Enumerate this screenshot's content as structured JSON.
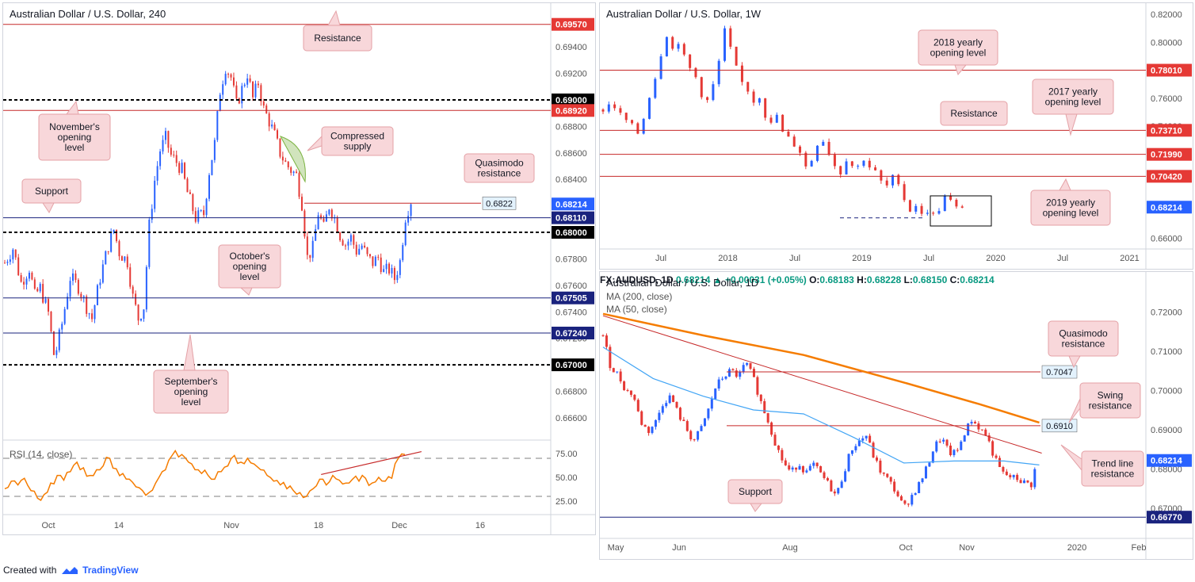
{
  "footer": {
    "created_with": "Created with",
    "brand": "TradingView",
    "logo_icon": "tradingview-logo-icon"
  },
  "colors": {
    "up": "#2962ff",
    "down": "#e53935",
    "level_red": "#c62828",
    "level_blue": "#1a237e",
    "rsi": "#f57c00",
    "ma200": "#f57c00",
    "ma50": "#42a5f5",
    "callout_bg": "#f8d7da",
    "callout_border": "#e4a1a6"
  },
  "chart_data": [
    {
      "id": "h4",
      "type": "candlestick",
      "title": "Australian Dollar / U.S. Dollar, 240",
      "ylim": [
        0.6645,
        0.6967
      ],
      "y_ticks": [
        "0.69400",
        "0.69200",
        "0.68800",
        "0.68600",
        "0.68400",
        "0.67800",
        "0.67600",
        "0.67400",
        "0.67200",
        "0.66800",
        "0.66600"
      ],
      "x_ticks": [
        "Oct",
        "14",
        "Nov",
        "18",
        "Dec",
        "16"
      ],
      "levels": [
        {
          "value": 0.6957,
          "label": "0.69570",
          "style": "red"
        },
        {
          "value": 0.69,
          "label": "0.69000",
          "style": "dash"
        },
        {
          "value": 0.6892,
          "label": "0.68920",
          "style": "red"
        },
        {
          "value": 0.68214,
          "label": "0.68214",
          "style": "blue-price"
        },
        {
          "value": 0.6811,
          "label": "0.68110",
          "style": "blue"
        },
        {
          "value": 0.68,
          "label": "0.68000",
          "style": "dash"
        },
        {
          "value": 0.67505,
          "label": "0.67505",
          "style": "blue"
        },
        {
          "value": 0.6724,
          "label": "0.67240",
          "style": "blue"
        },
        {
          "value": 0.67,
          "label": "0.67000",
          "style": "dash"
        }
      ],
      "quasimodo_tag": "0.6822",
      "path": [
        [
          0,
          0.6777
        ],
        [
          3,
          0.6788
        ],
        [
          6,
          0.6762
        ],
        [
          9,
          0.6773
        ],
        [
          11,
          0.6752
        ],
        [
          13,
          0.6758
        ],
        [
          16,
          0.6739
        ],
        [
          18,
          0.6708
        ],
        [
          19,
          0.6712
        ],
        [
          21,
          0.6731
        ],
        [
          24,
          0.6766
        ],
        [
          27,
          0.6759
        ],
        [
          30,
          0.6744
        ],
        [
          32,
          0.6735
        ],
        [
          35,
          0.6766
        ],
        [
          38,
          0.679
        ],
        [
          40,
          0.6802
        ],
        [
          42,
          0.6785
        ],
        [
          45,
          0.6778
        ],
        [
          47,
          0.6751
        ],
        [
          49,
          0.6735
        ],
        [
          51,
          0.6744
        ],
        [
          53,
          0.6805
        ],
        [
          55,
          0.6839
        ],
        [
          57,
          0.6862
        ],
        [
          59,
          0.6871
        ],
        [
          61,
          0.6858
        ],
        [
          63,
          0.6853
        ],
        [
          65,
          0.6847
        ],
        [
          67,
          0.683
        ],
        [
          70,
          0.6811
        ],
        [
          73,
          0.6814
        ],
        [
          75,
          0.6846
        ],
        [
          77,
          0.6867
        ],
        [
          79,
          0.6907
        ],
        [
          81,
          0.6925
        ],
        [
          83,
          0.6917
        ],
        [
          85,
          0.6896
        ],
        [
          87,
          0.6908
        ],
        [
          89,
          0.692
        ],
        [
          91,
          0.6901
        ],
        [
          93,
          0.6913
        ],
        [
          95,
          0.6893
        ],
        [
          97,
          0.6884
        ],
        [
          99,
          0.6873
        ],
        [
          101,
          0.686
        ],
        [
          103,
          0.6852
        ],
        [
          105,
          0.6847
        ],
        [
          107,
          0.6843
        ],
        [
          109,
          0.6822
        ],
        [
          111,
          0.6781
        ],
        [
          113,
          0.6788
        ],
        [
          115,
          0.6815
        ],
        [
          117,
          0.6803
        ],
        [
          119,
          0.682
        ],
        [
          121,
          0.6811
        ],
        [
          123,
          0.6798
        ],
        [
          125,
          0.6791
        ],
        [
          127,
          0.6796
        ],
        [
          129,
          0.6786
        ],
        [
          131,
          0.679
        ],
        [
          133,
          0.6781
        ],
        [
          135,
          0.6777
        ],
        [
          137,
          0.6781
        ],
        [
          139,
          0.677
        ],
        [
          141,
          0.6772
        ],
        [
          143,
          0.6765
        ],
        [
          145,
          0.6778
        ],
        [
          147,
          0.6812
        ],
        [
          149,
          0.6824
        ]
      ],
      "path_x_range": [
        0,
        200
      ],
      "rsi": {
        "label": "RSI (14, close)",
        "ylim": [
          15,
          85
        ],
        "y_ticks": [
          "75.00",
          "50.00",
          "25.00"
        ],
        "bands": [
          70,
          30
        ],
        "values": [
          38,
          46,
          42,
          49,
          36,
          28,
          32,
          44,
          52,
          47,
          56,
          66,
          60,
          52,
          58,
          62,
          70,
          59,
          54,
          48,
          40,
          36,
          34,
          44,
          56,
          68,
          78,
          74,
          66,
          58,
          54,
          52,
          48,
          56,
          62,
          73,
          66,
          70,
          64,
          58,
          52,
          46,
          42,
          38,
          36,
          34,
          30,
          38,
          48,
          42,
          52,
          47,
          44,
          48,
          46,
          49,
          44,
          50,
          46,
          49,
          70,
          74
        ],
        "trend_line": [
          [
            118,
            53
          ],
          [
            153,
            77
          ]
        ]
      },
      "callouts": [
        {
          "text": "Resistance"
        },
        {
          "text": "November's opening level"
        },
        {
          "text": "Compressed supply"
        },
        {
          "text": "Quasimodo resistance"
        },
        {
          "text": "Support"
        },
        {
          "text": "October's opening level"
        },
        {
          "text": "September's opening level"
        }
      ]
    },
    {
      "id": "weekly",
      "type": "candlestick",
      "title": "Australian Dollar / U.S. Dollar, 1W",
      "ylim": [
        0.6545,
        0.8235
      ],
      "y_ticks": [
        "0.82000",
        "0.80000",
        "0.76000",
        "0.74000",
        "0.66000"
      ],
      "x_ticks": [
        "Jul",
        "2018",
        "Jul",
        "2019",
        "Jul",
        "2020",
        "Jul",
        "2021"
      ],
      "levels": [
        {
          "value": 0.7801,
          "label": "0.78010",
          "style": "red"
        },
        {
          "value": 0.7371,
          "label": "0.73710",
          "style": "red"
        },
        {
          "value": 0.7199,
          "label": "0.71990",
          "style": "red"
        },
        {
          "value": 0.7042,
          "label": "0.70420",
          "style": "red"
        },
        {
          "value": 0.68214,
          "label": "0.68214",
          "style": "blue-price"
        }
      ],
      "path": [
        [
          0,
          0.752
        ],
        [
          3,
          0.757
        ],
        [
          6,
          0.748
        ],
        [
          9,
          0.742
        ],
        [
          12,
          0.735
        ],
        [
          14,
          0.746
        ],
        [
          16,
          0.762
        ],
        [
          18,
          0.775
        ],
        [
          20,
          0.792
        ],
        [
          22,
          0.806
        ],
        [
          24,
          0.795
        ],
        [
          26,
          0.801
        ],
        [
          28,
          0.789
        ],
        [
          30,
          0.781
        ],
        [
          32,
          0.775
        ],
        [
          34,
          0.763
        ],
        [
          36,
          0.758
        ],
        [
          38,
          0.769
        ],
        [
          40,
          0.786
        ],
        [
          42,
          0.808
        ],
        [
          44,
          0.795
        ],
        [
          46,
          0.781
        ],
        [
          48,
          0.771
        ],
        [
          50,
          0.766
        ],
        [
          52,
          0.758
        ],
        [
          54,
          0.762
        ],
        [
          56,
          0.748
        ],
        [
          58,
          0.741
        ],
        [
          60,
          0.748
        ],
        [
          62,
          0.735
        ],
        [
          64,
          0.731
        ],
        [
          66,
          0.727
        ],
        [
          68,
          0.722
        ],
        [
          70,
          0.711
        ],
        [
          72,
          0.716
        ],
        [
          74,
          0.728
        ],
        [
          76,
          0.73
        ],
        [
          78,
          0.721
        ],
        [
          80,
          0.712
        ],
        [
          82,
          0.707
        ],
        [
          84,
          0.717
        ],
        [
          86,
          0.712
        ],
        [
          88,
          0.711
        ],
        [
          90,
          0.717
        ],
        [
          92,
          0.711
        ],
        [
          94,
          0.707
        ],
        [
          96,
          0.7
        ],
        [
          98,
          0.697
        ],
        [
          100,
          0.703
        ],
        [
          102,
          0.701
        ],
        [
          104,
          0.688
        ],
        [
          106,
          0.68
        ],
        [
          108,
          0.684
        ],
        [
          110,
          0.676
        ],
        [
          112,
          0.68
        ],
        [
          114,
          0.676
        ],
        [
          116,
          0.681
        ],
        [
          118,
          0.689
        ],
        [
          120,
          0.686
        ],
        [
          122,
          0.681
        ],
        [
          124,
          0.683
        ]
      ],
      "path_x_range": [
        0,
        200
      ],
      "callouts": [
        {
          "text": "2018 yearly opening level"
        },
        {
          "text": "2017 yearly opening level"
        },
        {
          "text": "Resistance"
        },
        {
          "text": "2019 yearly opening level"
        }
      ]
    },
    {
      "id": "daily",
      "type": "candlestick",
      "title": "Australian Dollar / U.S. Dollar, 1D",
      "header": {
        "symbol": "FX:AUDUSD, 1D",
        "close": "0.68214",
        "arrow": "▲",
        "change": "+0.00031 (+0.05%)",
        "o_label": "O:",
        "o": "0.68183",
        "h_label": "H:",
        "h": "0.68228",
        "l_label": "L:",
        "l": "0.68150",
        "c_label": "C:",
        "c": "0.68214"
      },
      "indicators": [
        "MA (200, close)",
        "MA (50, close)"
      ],
      "ylim": [
        0.6635,
        0.7245
      ],
      "y_ticks": [
        "0.72000",
        "0.71000",
        "0.70000",
        "0.69000",
        "0.68000",
        "0.67000"
      ],
      "x_ticks": [
        "May",
        "Jun",
        "Aug",
        "Oct",
        "Nov",
        "2020",
        "Feb"
      ],
      "levels": [
        {
          "value": 0.7047,
          "label": "0.7047",
          "style": "red-tag"
        },
        {
          "value": 0.691,
          "label": "0.6910",
          "style": "red-tag"
        },
        {
          "value": 0.68214,
          "label": "0.68214",
          "style": "blue-price"
        },
        {
          "value": 0.6677,
          "label": "0.66770",
          "style": "blue"
        }
      ],
      "path": [
        [
          0,
          0.714
        ],
        [
          3,
          0.706
        ],
        [
          6,
          0.704
        ],
        [
          9,
          0.7
        ],
        [
          12,
          0.699
        ],
        [
          15,
          0.692
        ],
        [
          18,
          0.6895
        ],
        [
          21,
          0.692
        ],
        [
          24,
          0.697
        ],
        [
          27,
          0.6985
        ],
        [
          30,
          0.694
        ],
        [
          33,
          0.6905
        ],
        [
          36,
          0.687
        ],
        [
          39,
          0.69
        ],
        [
          42,
          0.695
        ],
        [
          45,
          0.701
        ],
        [
          48,
          0.7035
        ],
        [
          51,
          0.705
        ],
        [
          54,
          0.7035
        ],
        [
          57,
          0.707
        ],
        [
          60,
          0.703
        ],
        [
          63,
          0.697
        ],
        [
          66,
          0.692
        ],
        [
          69,
          0.686
        ],
        [
          72,
          0.6815
        ],
        [
          75,
          0.679
        ],
        [
          78,
          0.6815
        ],
        [
          81,
          0.679
        ],
        [
          84,
          0.681
        ],
        [
          87,
          0.6785
        ],
        [
          90,
          0.676
        ],
        [
          93,
          0.673
        ],
        [
          96,
          0.679
        ],
        [
          99,
          0.685
        ],
        [
          102,
          0.687
        ],
        [
          105,
          0.6885
        ],
        [
          108,
          0.683
        ],
        [
          111,
          0.679
        ],
        [
          114,
          0.677
        ],
        [
          117,
          0.674
        ],
        [
          120,
          0.67
        ],
        [
          123,
          0.673
        ],
        [
          126,
          0.676
        ],
        [
          129,
          0.68
        ],
        [
          132,
          0.6855
        ],
        [
          135,
          0.688
        ],
        [
          138,
          0.684
        ],
        [
          141,
          0.684
        ],
        [
          144,
          0.689
        ],
        [
          147,
          0.6925
        ],
        [
          150,
          0.6905
        ],
        [
          153,
          0.6885
        ],
        [
          156,
          0.683
        ],
        [
          159,
          0.679
        ],
        [
          162,
          0.678
        ],
        [
          165,
          0.6775
        ],
        [
          168,
          0.6765
        ],
        [
          171,
          0.676
        ],
        [
          173,
          0.6821
        ]
      ],
      "path_x_range": [
        0,
        220
      ],
      "ma200": [
        [
          0,
          0.7195
        ],
        [
          40,
          0.714
        ],
        [
          80,
          0.709
        ],
        [
          120,
          0.702
        ],
        [
          150,
          0.6965
        ],
        [
          174,
          0.6918
        ]
      ],
      "ma50": [
        [
          0,
          0.711
        ],
        [
          20,
          0.703
        ],
        [
          40,
          0.6985
        ],
        [
          60,
          0.695
        ],
        [
          80,
          0.694
        ],
        [
          100,
          0.688
        ],
        [
          120,
          0.6815
        ],
        [
          140,
          0.682
        ],
        [
          160,
          0.682
        ],
        [
          174,
          0.681
        ]
      ],
      "trend_line": [
        [
          0,
          0.719
        ],
        [
          175,
          0.684
        ]
      ],
      "callouts": [
        {
          "text": "Quasimodo resistance"
        },
        {
          "text": "Swing resistance"
        },
        {
          "text": "Trend line resistance"
        },
        {
          "text": "Support"
        }
      ]
    }
  ]
}
